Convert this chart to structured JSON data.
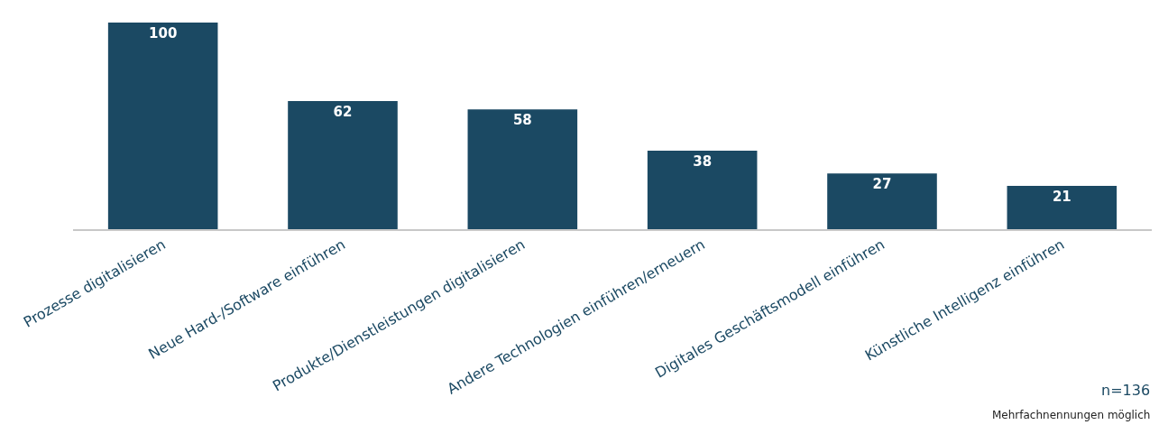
{
  "chart_data": {
    "type": "bar",
    "categories": [
      "Prozesse digitalisieren",
      "Neue Hard-/Software einführen",
      "Produkte/Dienstleistungen digitalisieren",
      "Andere Technologien einführen/erneuern",
      "Digitales Geschäftsmodell einführen",
      "Künstliche Intelligenz einführen"
    ],
    "values": [
      100,
      62,
      58,
      38,
      27,
      21
    ],
    "color": "#1b4963",
    "data_labels": true,
    "annotations": [
      "n=136",
      "Mehrfachnennungen möglich"
    ]
  }
}
